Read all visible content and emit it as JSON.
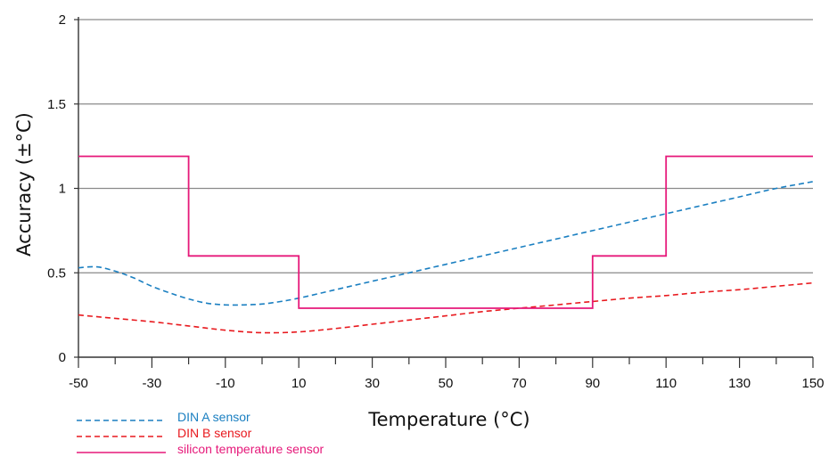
{
  "chart_data": {
    "type": "line",
    "xlabel": "Temperature (°C)",
    "ylabel": "Accuracy (±°C)",
    "xlim": [
      -50,
      150
    ],
    "ylim": [
      0,
      2
    ],
    "x_ticks": [
      -50,
      -30,
      -10,
      10,
      30,
      50,
      70,
      90,
      110,
      130,
      150
    ],
    "x_ticks_labels": [
      "-50",
      "-30",
      "-10",
      "10",
      "30",
      "50",
      "70",
      "90",
      "110",
      "130",
      "150"
    ],
    "y_ticks": [
      0,
      0.5,
      1,
      1.5,
      2
    ],
    "y_ticks_labels": [
      "0",
      "0.5",
      "1",
      "1.5",
      "2"
    ],
    "grid": "horizontal",
    "legend_position": "bottom-left",
    "series": [
      {
        "name": "DIN A sensor",
        "style": "dashed",
        "color": "#1a7fc1",
        "x": [
          -50,
          -45,
          -40,
          -35,
          -30,
          -25,
          -20,
          -15,
          -10,
          -5,
          0,
          5,
          10,
          20,
          30,
          40,
          50,
          60,
          70,
          80,
          90,
          100,
          110,
          120,
          130,
          140,
          150
        ],
        "y": [
          0.53,
          0.535,
          0.51,
          0.47,
          0.42,
          0.38,
          0.345,
          0.32,
          0.31,
          0.31,
          0.315,
          0.33,
          0.35,
          0.4,
          0.45,
          0.5,
          0.55,
          0.6,
          0.65,
          0.7,
          0.75,
          0.8,
          0.85,
          0.9,
          0.95,
          1.0,
          1.04
        ]
      },
      {
        "name": "DIN B sensor",
        "style": "dashed",
        "color": "#e8191e",
        "x": [
          -50,
          -40,
          -30,
          -20,
          -10,
          0,
          10,
          20,
          30,
          40,
          50,
          60,
          70,
          80,
          90,
          100,
          110,
          120,
          130,
          140,
          150
        ],
        "y": [
          0.25,
          0.23,
          0.21,
          0.185,
          0.16,
          0.145,
          0.15,
          0.17,
          0.195,
          0.22,
          0.245,
          0.27,
          0.29,
          0.31,
          0.33,
          0.35,
          0.365,
          0.385,
          0.4,
          0.42,
          0.44
        ]
      },
      {
        "name": "silicon temperature sensor",
        "style": "solid",
        "color": "#e6197a",
        "x": [
          -50,
          -20,
          -20,
          10,
          10,
          90,
          90,
          110,
          110,
          150
        ],
        "y": [
          1.19,
          1.19,
          0.6,
          0.6,
          0.29,
          0.29,
          0.6,
          0.6,
          1.19,
          1.19
        ]
      }
    ]
  }
}
